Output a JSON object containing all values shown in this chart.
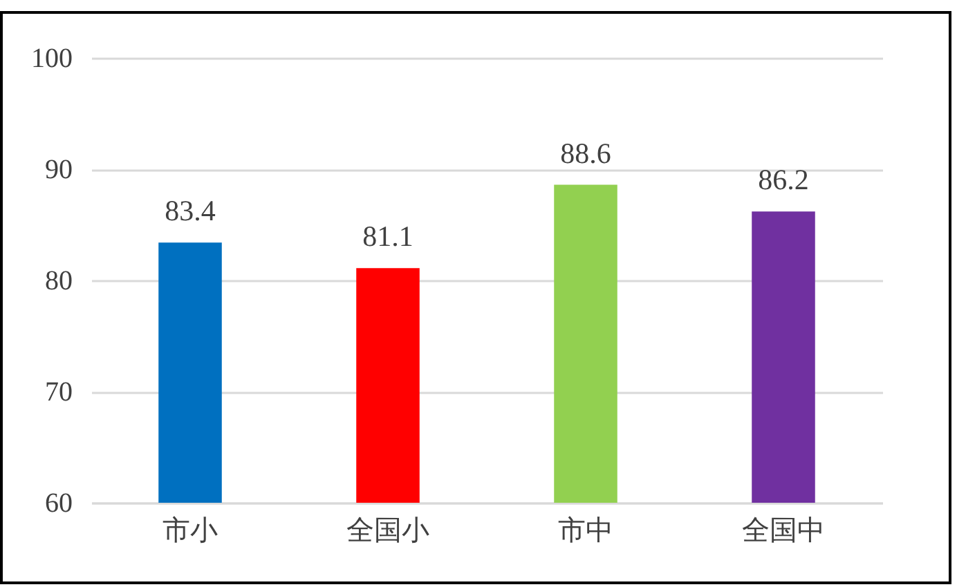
{
  "chart_data": {
    "type": "bar",
    "categories": [
      "市小",
      "全国小",
      "市中",
      "全国中"
    ],
    "values": [
      83.4,
      81.1,
      88.6,
      86.2
    ],
    "colors": [
      "#0070c0",
      "#ff0000",
      "#92d050",
      "#7030a0"
    ],
    "ylim": [
      60,
      100
    ],
    "yticks": [
      60,
      70,
      80,
      90,
      100
    ],
    "grid": "y",
    "data_labels": true
  }
}
